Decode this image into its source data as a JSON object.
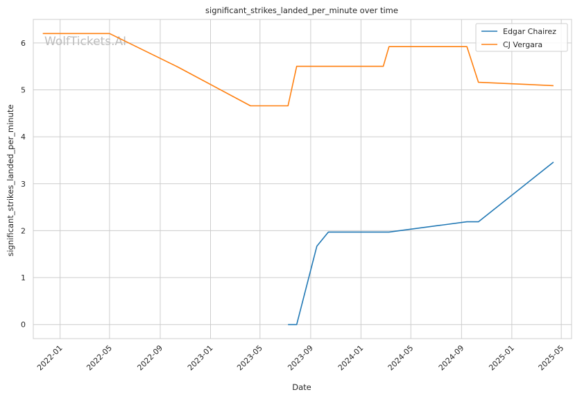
{
  "chart_data": {
    "type": "line",
    "title": "significant_strikes_landed_per_minute over time",
    "xlabel": "Date",
    "ylabel": "significant_strikes_landed_per_minute",
    "watermark": "WolfTickets.AI",
    "x_ticks": [
      "2022-01",
      "2022-05",
      "2022-09",
      "2023-01",
      "2023-05",
      "2023-09",
      "2024-01",
      "2024-05",
      "2024-09",
      "2025-01",
      "2025-05"
    ],
    "y_ticks": [
      0,
      1,
      2,
      3,
      4,
      5,
      6
    ],
    "xlim": [
      "2021-10-28",
      "2025-05-26"
    ],
    "ylim": [
      -0.3,
      6.5
    ],
    "grid": true,
    "legend_position": "top-right",
    "series": [
      {
        "name": "Edgar Chairez",
        "color": "#1f77b4",
        "points": [
          [
            "2023-07-08",
            0.0
          ],
          [
            "2023-07-29",
            0.0
          ],
          [
            "2023-09-16",
            1.67
          ],
          [
            "2023-10-14",
            1.97
          ],
          [
            "2024-03-09",
            1.97
          ],
          [
            "2024-09-14",
            2.19
          ],
          [
            "2024-10-12",
            2.19
          ],
          [
            "2025-04-12",
            3.46
          ]
        ]
      },
      {
        "name": "CJ Vergara",
        "color": "#ff7f0e",
        "points": [
          [
            "2021-11-20",
            6.2
          ],
          [
            "2022-05-01",
            6.2
          ],
          [
            "2022-10-15",
            5.48
          ],
          [
            "2023-04-08",
            4.66
          ],
          [
            "2023-07-08",
            4.66
          ],
          [
            "2023-07-29",
            5.5
          ],
          [
            "2024-02-24",
            5.5
          ],
          [
            "2024-03-09",
            5.92
          ],
          [
            "2024-09-14",
            5.92
          ],
          [
            "2024-10-12",
            5.16
          ],
          [
            "2025-04-12",
            5.09
          ]
        ]
      }
    ]
  }
}
